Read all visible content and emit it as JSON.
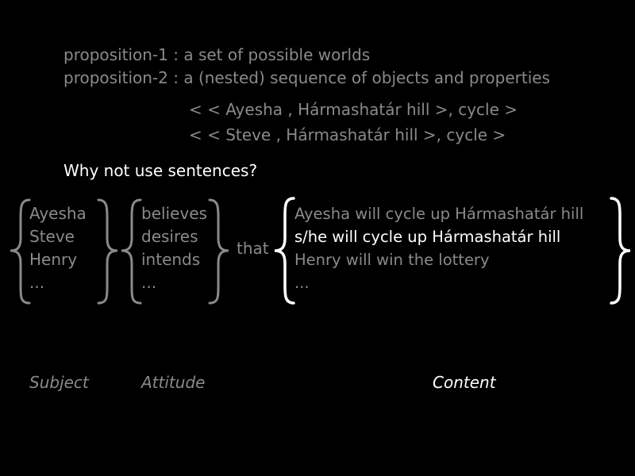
{
  "definitions": {
    "prop1": "proposition-1 : a set of possible worlds",
    "prop2": "proposition-2 : a (nested) sequence of objects and properties"
  },
  "sequences": [
    "< < Ayesha , Hármashatár hill >, cycle >",
    "< < Steve , Hármashatár hill >, cycle >"
  ],
  "question": "Why not use sentences?",
  "subjects": [
    "Ayesha",
    "Steve",
    "Henry",
    "..."
  ],
  "attitudes": [
    "believes",
    "desires",
    "intends",
    "..."
  ],
  "connector": "that",
  "contents": [
    "Ayesha will cycle up Hármashatár hill",
    "s/he will cycle up Hármashatár hill",
    "Henry will win the lottery",
    "..."
  ],
  "labels": {
    "subject": "Subject",
    "attitude": "Attitude",
    "content": "Content"
  },
  "colors": {
    "background": "#000000",
    "dim_text": "#8a8a8a",
    "highlight_text": "#ffffff"
  }
}
